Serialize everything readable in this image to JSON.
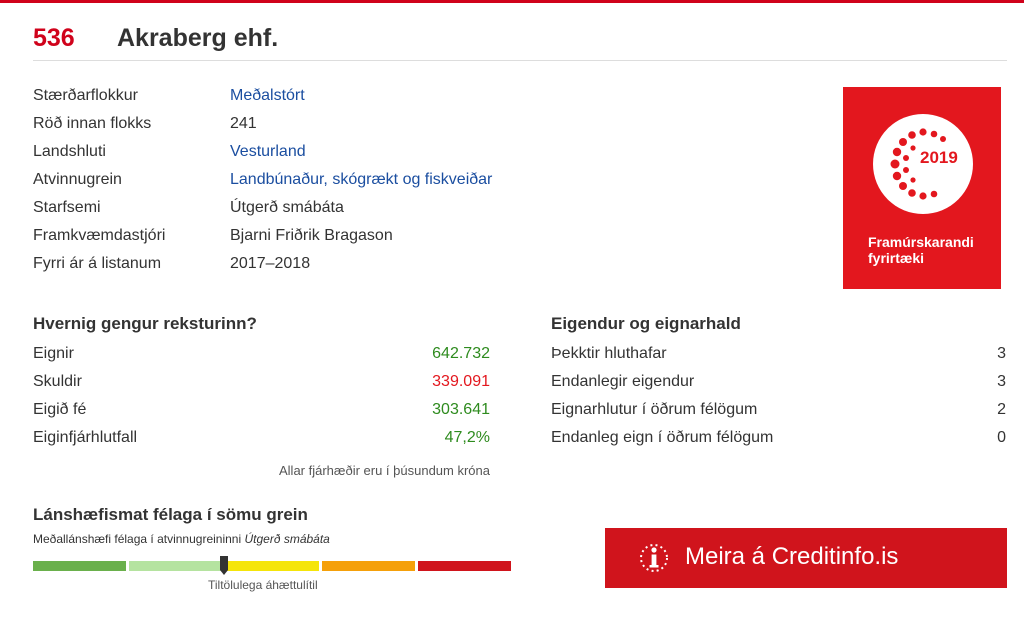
{
  "header": {
    "rank": "536",
    "company": "Akraberg ehf."
  },
  "info": [
    {
      "label": "Stærðarflokkur",
      "value": "Meðalstórt",
      "link": true
    },
    {
      "label": "Röð innan flokks",
      "value": "241",
      "link": false
    },
    {
      "label": "Landshluti",
      "value": "Vesturland",
      "link": true
    },
    {
      "label": "Atvinnugrein",
      "value": "Landbúnaður, skógrækt og fiskveiðar",
      "link": true
    },
    {
      "label": "Starfsemi",
      "value": "Útgerð smábáta",
      "link": false
    },
    {
      "label": "Framkvæmdastjóri",
      "value": "Bjarni Friðrik Bragason",
      "link": false
    },
    {
      "label": "Fyrri ár á listanum",
      "value": "2017–2018",
      "link": false
    }
  ],
  "badge": {
    "year": "2019",
    "line1": "Framúrskarandi",
    "line2": "fyrirtæki",
    "color": "#e3171e"
  },
  "finances": {
    "title": "Hvernig gengur reksturinn?",
    "rows": [
      {
        "label": "Eignir",
        "value": "642.732",
        "tone": "green"
      },
      {
        "label": "Skuldir",
        "value": "339.091",
        "tone": "red"
      },
      {
        "label": "Eigið fé",
        "value": "303.641",
        "tone": "green"
      },
      {
        "label": "Eiginfjárhlutfall",
        "value": "47,2%",
        "tone": "green"
      }
    ],
    "note": "Allar fjárhæðir eru í þúsundum króna"
  },
  "ownership": {
    "title": "Eigendur og eignarhald",
    "rows": [
      {
        "label": "Þekktir hluthafar",
        "value": "3"
      },
      {
        "label": "Endanlegir eigendur",
        "value": "3"
      },
      {
        "label": "Eignarhlutur í öðrum félögum",
        "value": "2"
      },
      {
        "label": "Endanleg eign í öðrum félögum",
        "value": "0"
      }
    ]
  },
  "rating": {
    "title": "Lánshæfismat félaga í sömu grein",
    "subtitle_prefix": "Meðallánshæfi félaga í atvinnugreininni ",
    "subtitle_industry": "Útgerð smábáta",
    "caption": "Tiltölulega áhættulítil",
    "segment_colors": [
      "#6ab04c",
      "#b5e3a0",
      "#f5e50a",
      "#f5a00a",
      "#d0141c"
    ],
    "marker_fraction": 0.4
  },
  "cta": {
    "label": "Meira á Creditinfo.is",
    "icon": "creditinfo-i-icon",
    "color": "#d0141c"
  }
}
